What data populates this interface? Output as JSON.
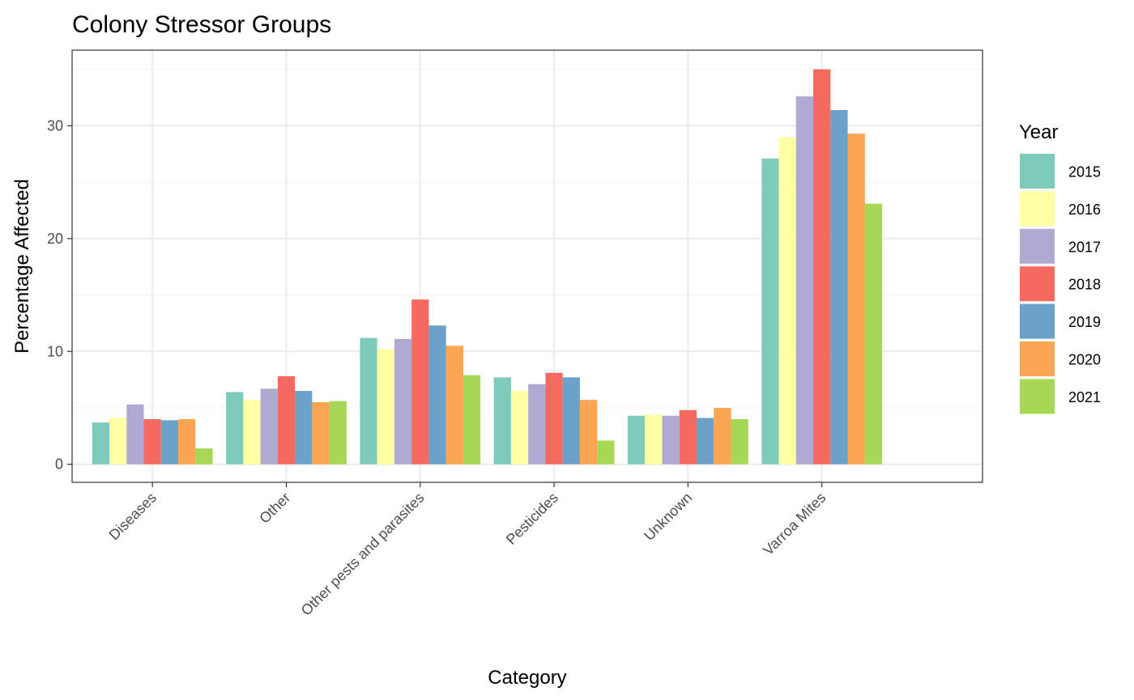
{
  "chart_data": {
    "type": "bar",
    "title": "Colony Stressor Groups",
    "xlabel": "Category",
    "ylabel": "Percentage Affected",
    "categories": [
      "Diseases",
      "Other",
      "Other pests and parasites",
      "Pesticides",
      "Unknown",
      "Varroa Mites"
    ],
    "ylim": [
      -1.6,
      36.7
    ],
    "yticks": [
      0,
      10,
      20,
      30
    ],
    "grid": true,
    "legend": {
      "title": "Year",
      "position": "right"
    },
    "series": [
      {
        "name": "2015",
        "color": "#7fcbbb",
        "values": [
          3.7,
          6.4,
          11.2,
          7.7,
          4.3,
          27.1
        ]
      },
      {
        "name": "2016",
        "color": "#ffffa3",
        "values": [
          4.1,
          5.7,
          10.2,
          6.5,
          4.4,
          29.0
        ]
      },
      {
        "name": "2017",
        "color": "#b0a9d2",
        "values": [
          5.3,
          6.7,
          11.1,
          7.1,
          4.3,
          32.6
        ]
      },
      {
        "name": "2018",
        "color": "#f46a5e",
        "values": [
          4.0,
          7.8,
          14.6,
          8.1,
          4.8,
          35.0
        ]
      },
      {
        "name": "2019",
        "color": "#6ca2ca",
        "values": [
          3.9,
          6.5,
          12.3,
          7.7,
          4.1,
          31.4
        ]
      },
      {
        "name": "2020",
        "color": "#faa551",
        "values": [
          4.0,
          5.5,
          10.5,
          5.7,
          5.0,
          29.3
        ]
      },
      {
        "name": "2021",
        "color": "#a6d856",
        "values": [
          1.4,
          5.6,
          7.9,
          2.1,
          4.0,
          23.1
        ]
      }
    ]
  }
}
